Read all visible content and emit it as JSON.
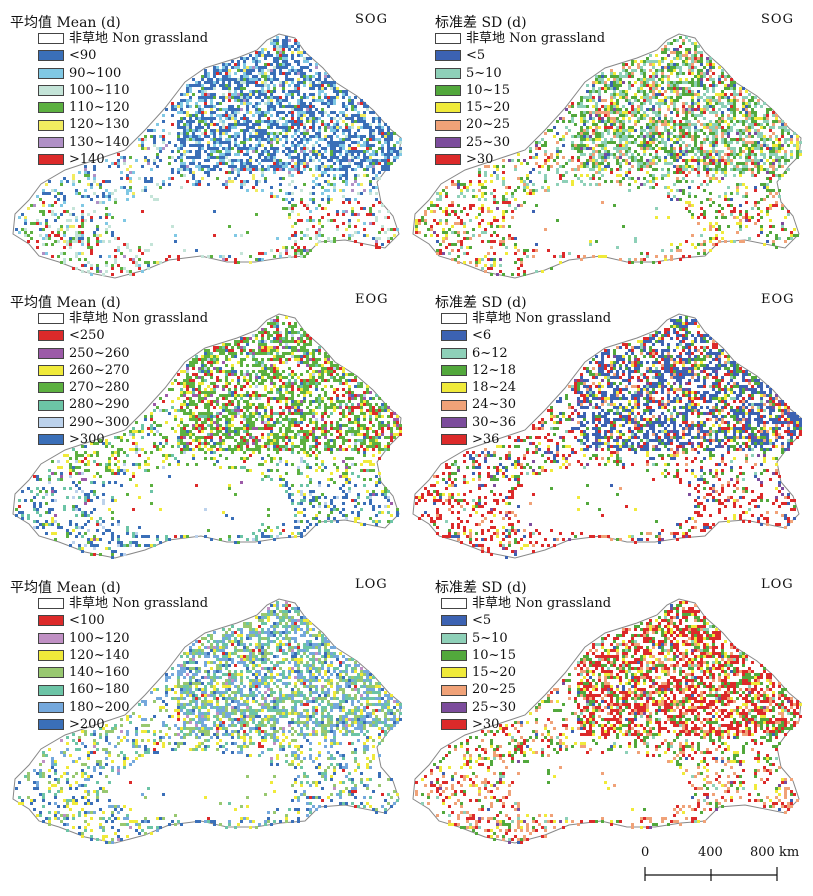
{
  "panels": [
    {
      "title": "平均值 Mean (d)",
      "code": "SOG",
      "legend": [
        {
          "label": "非草地 Non grassland",
          "color": "#ffffff"
        },
        {
          "label": "<90",
          "color": "#3a6fb8"
        },
        {
          "label": "90~100",
          "color": "#80c8e4"
        },
        {
          "label": "100~110",
          "color": "#c4e4d8"
        },
        {
          "label": "110~120",
          "color": "#5cb040"
        },
        {
          "label": "120~130",
          "color": "#f2ec60"
        },
        {
          "label": "130~140",
          "color": "#b090c6"
        },
        {
          "label": ">140",
          "color": "#dc2a2a"
        }
      ]
    },
    {
      "title": "标准差 SD (d)",
      "code": "SOG",
      "legend": [
        {
          "label": "非草地 Non grassland",
          "color": "#ffffff"
        },
        {
          "label": "<5",
          "color": "#3c62b2"
        },
        {
          "label": "5~10",
          "color": "#8ed0b8"
        },
        {
          "label": "10~15",
          "color": "#52a83c"
        },
        {
          "label": "15~20",
          "color": "#f0ea3a"
        },
        {
          "label": "20~25",
          "color": "#f0a278"
        },
        {
          "label": "25~30",
          "color": "#7c4c9c"
        },
        {
          "label": ">30",
          "color": "#dc2a2a"
        }
      ]
    },
    {
      "title": "平均值 Mean (d)",
      "code": "EOG",
      "legend": [
        {
          "label": "非草地 Non grassland",
          "color": "#ffffff"
        },
        {
          "label": "<250",
          "color": "#dc2a2a"
        },
        {
          "label": "250~260",
          "color": "#9c5aa8"
        },
        {
          "label": "260~270",
          "color": "#f0ea3a"
        },
        {
          "label": "270~280",
          "color": "#5cb040"
        },
        {
          "label": "280~290",
          "color": "#6cc4a6"
        },
        {
          "label": "290~300",
          "color": "#bcd2ec"
        },
        {
          "label": ">300",
          "color": "#3a6fb8"
        }
      ]
    },
    {
      "title": "标准差 SD (d)",
      "code": "EOG",
      "legend": [
        {
          "label": "非草地 Non grassland",
          "color": "#ffffff"
        },
        {
          "label": "<6",
          "color": "#3c62b2"
        },
        {
          "label": "6~12",
          "color": "#8ed0b8"
        },
        {
          "label": "12~18",
          "color": "#52a83c"
        },
        {
          "label": "18~24",
          "color": "#f0ea3a"
        },
        {
          "label": "24~30",
          "color": "#f0a278"
        },
        {
          "label": "30~36",
          "color": "#7c4c9c"
        },
        {
          "label": ">36",
          "color": "#dc2a2a"
        }
      ]
    },
    {
      "title": "平均值 Mean (d)",
      "code": "LOG",
      "legend": [
        {
          "label": "非草地 Non grassland",
          "color": "#ffffff"
        },
        {
          "label": "<100",
          "color": "#dc2a2a"
        },
        {
          "label": "100~120",
          "color": "#c090c4"
        },
        {
          "label": "120~140",
          "color": "#f0ea3a"
        },
        {
          "label": "140~160",
          "color": "#98c870"
        },
        {
          "label": "160~180",
          "color": "#6cc4a6"
        },
        {
          "label": "180~200",
          "color": "#74a8dc"
        },
        {
          "label": ">200",
          "color": "#3a6fb8"
        }
      ]
    },
    {
      "title": "标准差 SD (d)",
      "code": "LOG",
      "legend": [
        {
          "label": "非草地 Non grassland",
          "color": "#ffffff"
        },
        {
          "label": "<5",
          "color": "#3c62b2"
        },
        {
          "label": "5~10",
          "color": "#8ed0b8"
        },
        {
          "label": "10~15",
          "color": "#52a83c"
        },
        {
          "label": "15~20",
          "color": "#f0ea3a"
        },
        {
          "label": "20~25",
          "color": "#f0a278"
        },
        {
          "label": "25~30",
          "color": "#7c4c9c"
        },
        {
          "label": ">30",
          "color": "#dc2a2a"
        }
      ]
    }
  ],
  "scale": {
    "labels": [
      "0",
      "400",
      "800 km"
    ]
  }
}
